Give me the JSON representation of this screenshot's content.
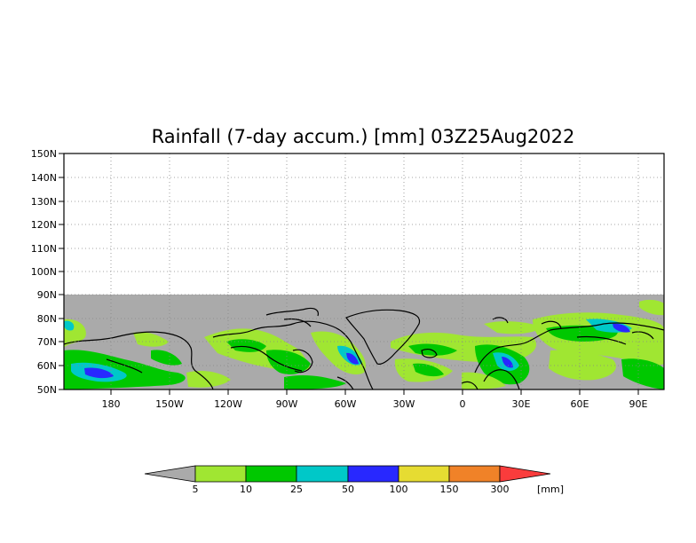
{
  "title": "Rainfall (7-day accum.) [mm] 03Z25Aug2022",
  "lat_ticks": [
    "150N",
    "140N",
    "130N",
    "120N",
    "110N",
    "100N",
    "90N",
    "80N",
    "70N",
    "60N",
    "50N"
  ],
  "lon_ticks": [
    "180",
    "150W",
    "120W",
    "90W",
    "60W",
    "30W",
    "0",
    "30E",
    "60E",
    "90E"
  ],
  "legend": {
    "labels": [
      "5",
      "10",
      "25",
      "50",
      "100",
      "150",
      "300"
    ],
    "unit": "[mm]",
    "colors": [
      "#a0e632",
      "#00c800",
      "#00c8c8",
      "#2828ff",
      "#e6dc32",
      "#f08228",
      "#fa3c3c"
    ],
    "under_color": "#aaaaaa"
  },
  "colors": {
    "no_data": "#aaaaaa",
    "land_dry": "#aaaaaa",
    "grid": "#888888"
  }
}
